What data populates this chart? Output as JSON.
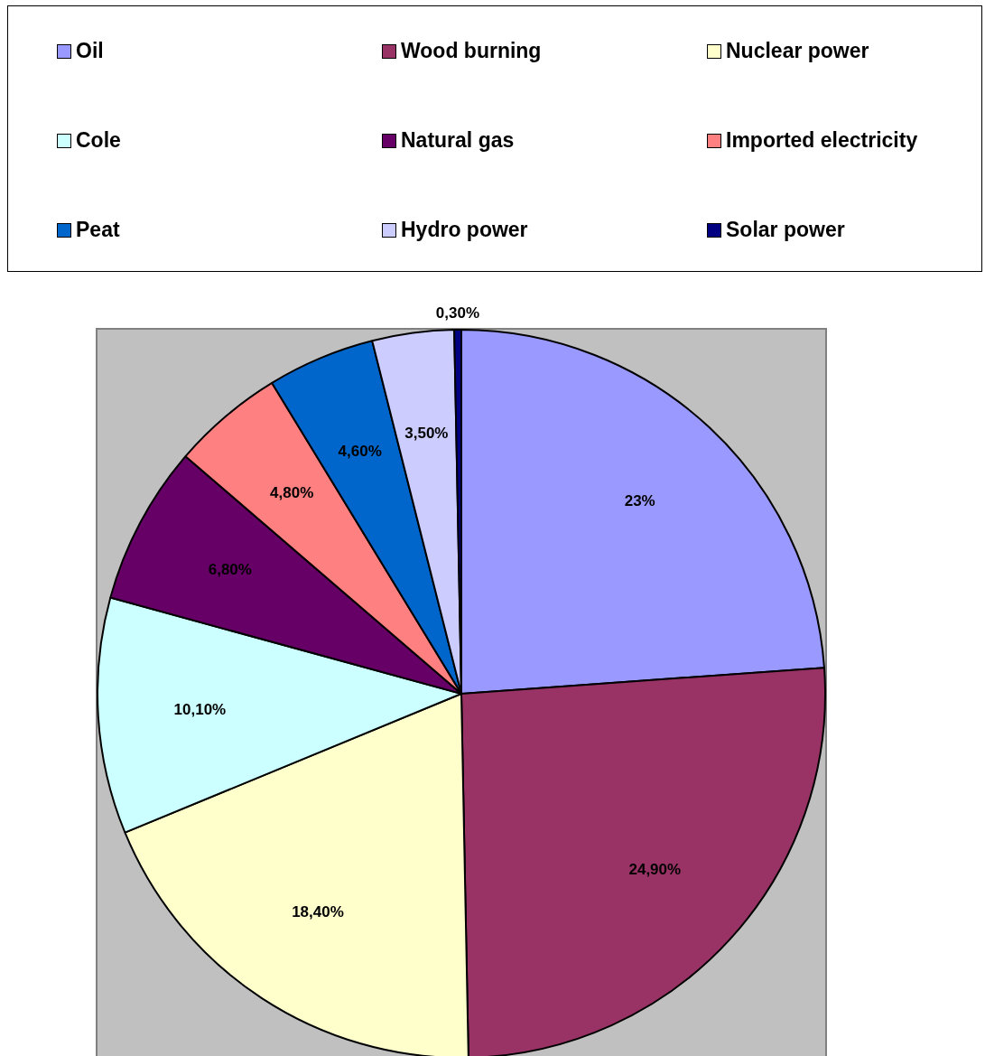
{
  "chart_data": {
    "type": "pie",
    "categories": [
      "Oil",
      "Wood burning",
      "Nuclear power",
      "Cole",
      "Natural gas",
      "Imported electricity",
      "Peat",
      "Hydro power",
      "Solar power"
    ],
    "values": [
      23,
      24.9,
      18.4,
      10.1,
      6.8,
      4.8,
      4.6,
      3.5,
      0.3
    ],
    "colors": [
      "#9999ff",
      "#993366",
      "#ffffcc",
      "#ccffff",
      "#660066",
      "#ff8080",
      "#0066cc",
      "#ccccff",
      "#000080"
    ],
    "value_labels": [
      "23%",
      "24,90%",
      "18,40%",
      "10,10%",
      "6,80%",
      "4,80%",
      "4,60%",
      "3,50%",
      "0,30%"
    ],
    "legend": "top"
  }
}
